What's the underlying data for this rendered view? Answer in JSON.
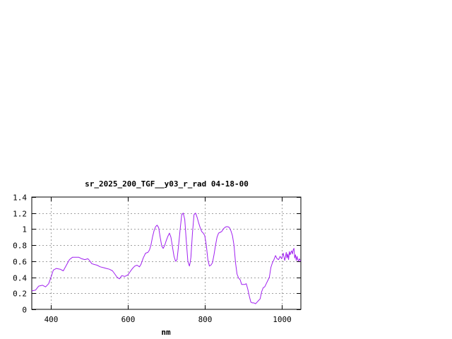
{
  "chart_data": {
    "type": "line",
    "title": "sr_2025_200_TGF__y03_r_rad 04-18-00",
    "xlabel": "nm",
    "ylabel": "",
    "xlim": [
      350,
      1050
    ],
    "ylim": [
      0,
      1.4
    ],
    "xticks": [
      400,
      600,
      800,
      1000
    ],
    "xtick_labels": [
      "400",
      "600",
      "800",
      "1000"
    ],
    "yticks": [
      0,
      0.2,
      0.4,
      0.6,
      0.8,
      1,
      1.2,
      1.4
    ],
    "ytick_labels": [
      "0",
      "0.2",
      "0.4",
      "0.6",
      "0.8",
      "1",
      "1.2",
      "1.4"
    ],
    "grid": true,
    "line_color": "#a020f0",
    "series": [
      {
        "x": [
          350,
          360,
          368,
          378,
          386,
          394,
          400,
          406,
          414,
          424,
          432,
          440,
          448,
          456,
          464,
          472,
          480,
          488,
          496,
          500,
          506,
          512,
          520,
          528,
          536,
          544,
          552,
          560,
          566,
          572,
          578,
          584,
          592,
          600,
          606,
          612,
          618,
          624,
          630,
          634,
          640,
          646,
          652,
          656,
          660,
          664,
          668,
          672,
          676,
          680,
          684,
          688,
          692,
          696,
          700,
          704,
          708,
          712,
          716,
          720,
          724,
          728,
          732,
          736,
          740,
          744,
          748,
          752,
          756,
          760,
          762,
          764,
          768,
          772,
          776,
          780,
          784,
          788,
          792,
          796,
          800,
          804,
          808,
          812,
          816,
          820,
          824,
          828,
          832,
          836,
          840,
          844,
          848,
          852,
          856,
          860,
          864,
          868,
          872,
          876,
          880,
          884,
          888,
          892,
          896,
          900,
          904,
          908,
          912,
          916,
          920,
          924,
          928,
          932,
          936,
          940,
          944,
          948,
          952,
          956,
          960,
          964,
          968,
          972,
          976,
          980,
          984,
          988,
          992,
          996,
          1000,
          1004,
          1008,
          1010,
          1012,
          1014,
          1016,
          1018,
          1020,
          1022,
          1024,
          1026,
          1028,
          1030,
          1032,
          1034,
          1036,
          1038,
          1040,
          1042,
          1044,
          1046,
          1048,
          1050
        ],
        "y": [
          0.23,
          0.24,
          0.29,
          0.3,
          0.28,
          0.32,
          0.4,
          0.49,
          0.51,
          0.5,
          0.48,
          0.55,
          0.62,
          0.65,
          0.65,
          0.65,
          0.63,
          0.62,
          0.63,
          0.61,
          0.57,
          0.56,
          0.55,
          0.53,
          0.52,
          0.51,
          0.5,
          0.48,
          0.44,
          0.4,
          0.38,
          0.42,
          0.41,
          0.43,
          0.47,
          0.51,
          0.54,
          0.55,
          0.53,
          0.56,
          0.64,
          0.7,
          0.71,
          0.74,
          0.8,
          0.9,
          0.98,
          1.03,
          1.05,
          1.02,
          0.9,
          0.79,
          0.76,
          0.8,
          0.86,
          0.91,
          0.95,
          0.9,
          0.78,
          0.66,
          0.6,
          0.62,
          0.8,
          1.0,
          1.18,
          1.2,
          1.12,
          0.85,
          0.6,
          0.54,
          0.58,
          0.65,
          0.95,
          1.18,
          1.2,
          1.15,
          1.08,
          1.02,
          0.97,
          0.95,
          0.92,
          0.8,
          0.62,
          0.54,
          0.55,
          0.58,
          0.68,
          0.8,
          0.9,
          0.95,
          0.96,
          0.97,
          1.0,
          1.02,
          1.03,
          1.03,
          1.02,
          0.98,
          0.92,
          0.8,
          0.58,
          0.44,
          0.39,
          0.37,
          0.31,
          0.31,
          0.31,
          0.32,
          0.25,
          0.16,
          0.09,
          0.08,
          0.08,
          0.07,
          0.09,
          0.11,
          0.13,
          0.22,
          0.27,
          0.28,
          0.32,
          0.36,
          0.4,
          0.52,
          0.58,
          0.62,
          0.67,
          0.63,
          0.62,
          0.66,
          0.63,
          0.7,
          0.61,
          0.65,
          0.71,
          0.64,
          0.69,
          0.62,
          0.72,
          0.68,
          0.71,
          0.73,
          0.69,
          0.74,
          0.76,
          0.64,
          0.68,
          0.61,
          0.66,
          0.62,
          0.6,
          0.63,
          0.61,
          0.6
        ]
      }
    ]
  }
}
